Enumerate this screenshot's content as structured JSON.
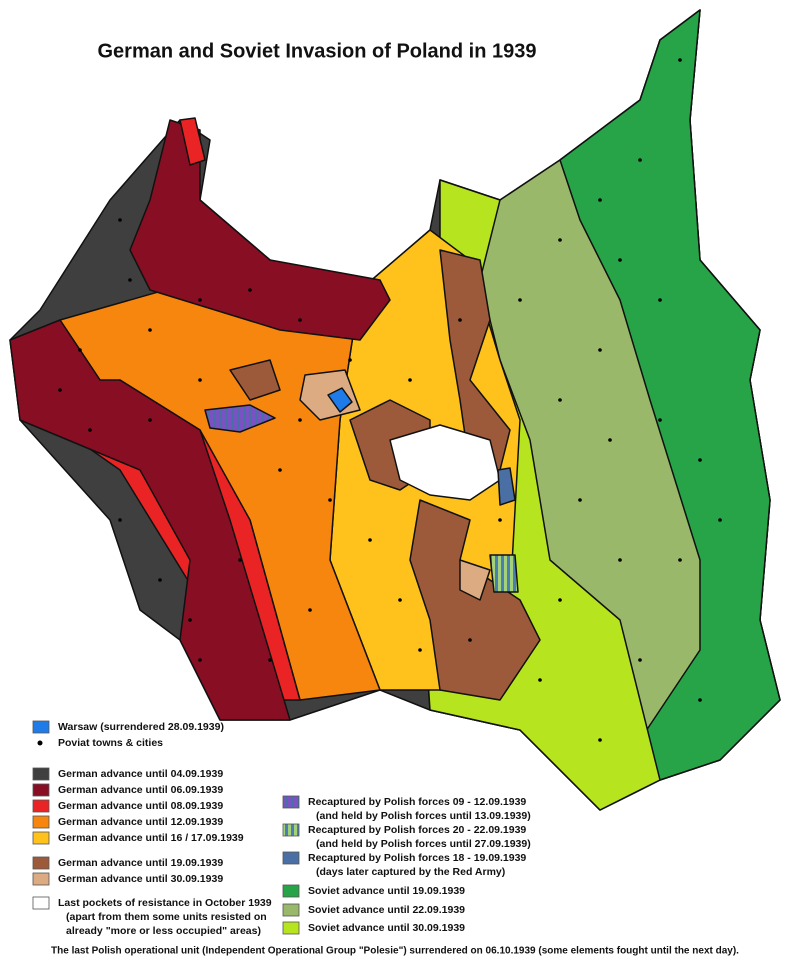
{
  "title": "German and Soviet Invasion of Poland in 1939",
  "legend_left": [
    {
      "lines": [
        "Warsaw (surrendered 28.09.1939)"
      ],
      "color": "#1f7be8"
    },
    {
      "lines": [
        "Poviat towns & cities"
      ],
      "color": "#000000",
      "style": "dot"
    },
    {
      "lines": [
        "German advance until 04.09.1939"
      ],
      "color": "#3f3f3f"
    },
    {
      "lines": [
        "German advance until 06.09.1939"
      ],
      "color": "#880e24"
    },
    {
      "lines": [
        "German advance until 08.09.1939"
      ],
      "color": "#ea2424"
    },
    {
      "lines": [
        "German advance until 12.09.1939"
      ],
      "color": "#f7860f"
    },
    {
      "lines": [
        "German advance until 16 / 17.09.1939"
      ],
      "color": "#ffc11c"
    },
    {
      "lines": [
        "German advance until 19.09.1939"
      ],
      "color": "#9c5a3b"
    },
    {
      "lines": [
        "German advance until 30.09.1939"
      ],
      "color": "#dcab82"
    },
    {
      "lines": [
        "Last pockets of resistance in October 1939",
        "(apart from them some units resisted on",
        "already \"more or less occupied\" areas)"
      ],
      "color": "#ffffff"
    }
  ],
  "legend_right": [
    {
      "lines": [
        "Recaptured by Polish forces 09 - 12.09.1939",
        "(and held by Polish forces until 13.09.1939)"
      ],
      "color": "#7b52c4",
      "color2": "#4a6fa5",
      "style": "stripes"
    },
    {
      "lines": [
        "Recaptured by Polish forces 20 - 22.09.1939",
        "(and held by Polish forces until 27.09.1939)"
      ],
      "color": "#a4d27a",
      "color2": "#4a7fb0",
      "style": "stripes"
    },
    {
      "lines": [
        "Recaptured by Polish forces 18 - 19.09.1939",
        "(days later captured by the Red Army)"
      ],
      "color": "#4a6fa5"
    },
    {
      "lines": [
        "Soviet advance until 19.09.1939"
      ],
      "color": "#27a447"
    },
    {
      "lines": [
        "Soviet advance until 22.09.1939"
      ],
      "color": "#9ab86a"
    },
    {
      "lines": [
        "Soviet advance until 30.09.1939"
      ],
      "color": "#b6e41f"
    }
  ],
  "footer": "The last Polish operational unit (Independent Operational Group \"Polesie\") surrendered on 06.10.1939 (some elements fought until the next day)."
}
